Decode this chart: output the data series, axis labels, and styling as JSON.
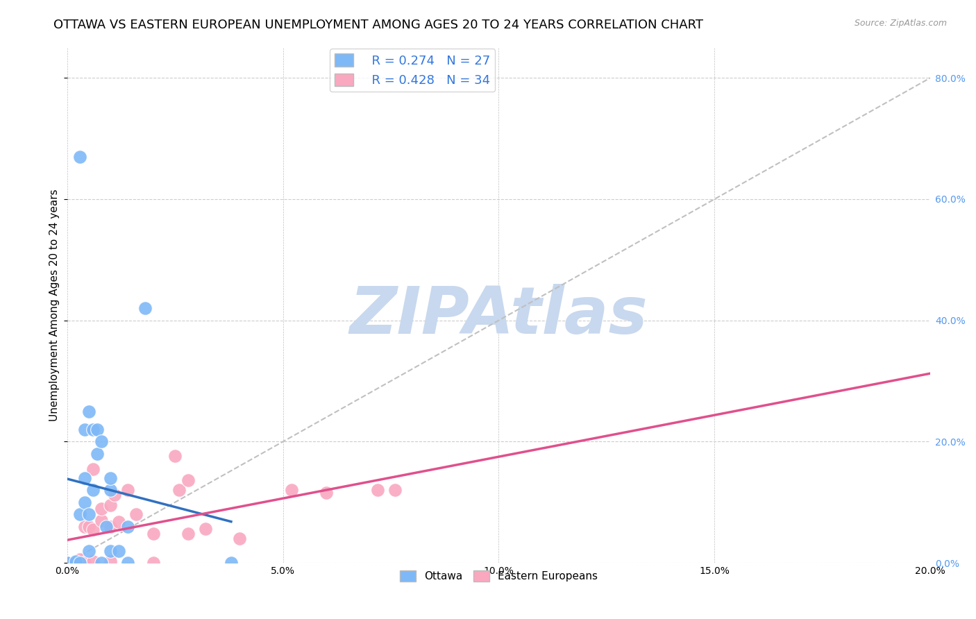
{
  "title": "OTTAWA VS EASTERN EUROPEAN UNEMPLOYMENT AMONG AGES 20 TO 24 YEARS CORRELATION CHART",
  "source": "Source: ZipAtlas.com",
  "ylabel": "Unemployment Among Ages 20 to 24 years",
  "xlim": [
    0.0,
    0.2
  ],
  "ylim": [
    0.0,
    0.85
  ],
  "ottawa_R": 0.274,
  "ottawa_N": 27,
  "eastern_R": 0.428,
  "eastern_N": 34,
  "ottawa_color": "#7EB8F7",
  "eastern_color": "#F9A8C0",
  "ottawa_line_color": "#3070C0",
  "eastern_line_color": "#E0508C",
  "dashed_line_color": "#C0C0C0",
  "ottawa_x": [
    0.0,
    0.002,
    0.002,
    0.003,
    0.003,
    0.004,
    0.004,
    0.004,
    0.005,
    0.005,
    0.005,
    0.006,
    0.006,
    0.007,
    0.007,
    0.008,
    0.008,
    0.009,
    0.01,
    0.01,
    0.01,
    0.012,
    0.014,
    0.014,
    0.018,
    0.003,
    0.038
  ],
  "ottawa_y": [
    0.0,
    0.0,
    0.002,
    0.0,
    0.08,
    0.1,
    0.14,
    0.22,
    0.02,
    0.08,
    0.25,
    0.12,
    0.22,
    0.18,
    0.22,
    0.0,
    0.2,
    0.06,
    0.02,
    0.12,
    0.14,
    0.02,
    0.0,
    0.06,
    0.42,
    0.67,
    0.0
  ],
  "eastern_x": [
    0.0,
    0.0,
    0.002,
    0.002,
    0.003,
    0.003,
    0.003,
    0.004,
    0.004,
    0.005,
    0.006,
    0.006,
    0.006,
    0.008,
    0.008,
    0.01,
    0.01,
    0.01,
    0.011,
    0.012,
    0.014,
    0.016,
    0.02,
    0.02,
    0.025,
    0.026,
    0.028,
    0.028,
    0.032,
    0.04,
    0.052,
    0.06,
    0.072,
    0.076
  ],
  "eastern_y": [
    0.0,
    0.0,
    0.0,
    0.002,
    0.0,
    0.0,
    0.006,
    0.0,
    0.06,
    0.06,
    0.002,
    0.055,
    0.155,
    0.07,
    0.09,
    0.002,
    0.06,
    0.095,
    0.112,
    0.068,
    0.12,
    0.08,
    0.0,
    0.048,
    0.176,
    0.12,
    0.136,
    0.048,
    0.056,
    0.04,
    0.12,
    0.116,
    0.12,
    0.12
  ],
  "watermark": "ZIPAtlas",
  "watermark_color": "#C8D8EE",
  "title_fontsize": 13,
  "axis_label_fontsize": 11,
  "tick_fontsize": 10,
  "legend_fontsize": 13,
  "right_tick_color": "#5599EE"
}
